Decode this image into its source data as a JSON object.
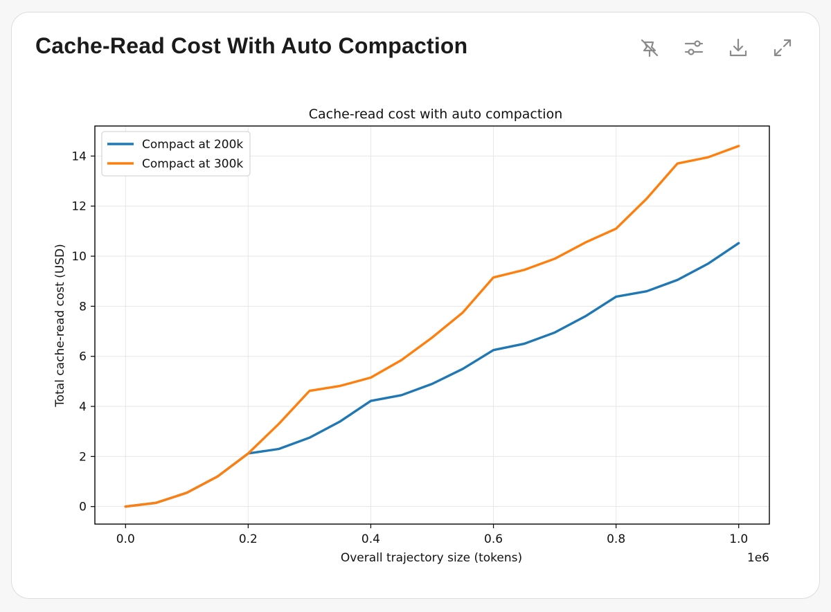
{
  "card": {
    "title": "Cache-Read Cost With Auto Compaction",
    "toolbar": [
      {
        "icon": "pin-off-icon",
        "label": ""
      },
      {
        "icon": "sliders-icon",
        "label": ""
      },
      {
        "icon": "download-icon",
        "label": ""
      },
      {
        "icon": "expand-icon",
        "label": ""
      }
    ]
  },
  "colors": {
    "series_200k": "#1f77b4",
    "series_300k": "#ff7f0e",
    "icon": "#8a8a8a",
    "grid": "#e6e6e6"
  },
  "chart_data": {
    "type": "line",
    "title": "Cache-read cost with auto compaction",
    "xlabel": "Overall trajectory size (tokens)",
    "ylabel": "Total cache-read cost (USD)",
    "x_offset_label": "1e6",
    "xlim": [
      -0.05,
      1.05
    ],
    "ylim": [
      -0.7,
      15.2
    ],
    "xticks": [
      0.0,
      0.2,
      0.4,
      0.6,
      0.8,
      1.0
    ],
    "xtick_labels": [
      "0.0",
      "0.2",
      "0.4",
      "0.6",
      "0.8",
      "1.0"
    ],
    "yticks": [
      0,
      2,
      4,
      6,
      8,
      10,
      12,
      14
    ],
    "ytick_labels": [
      "0",
      "2",
      "4",
      "6",
      "8",
      "10",
      "12",
      "14"
    ],
    "grid": true,
    "legend_position": "top-left",
    "series": [
      {
        "name": "Compact at 200k",
        "x": [
          0.0,
          0.05,
          0.1,
          0.15,
          0.2,
          0.25,
          0.3,
          0.35,
          0.4,
          0.45,
          0.5,
          0.55,
          0.6,
          0.65,
          0.7,
          0.75,
          0.8,
          0.85,
          0.9,
          0.95,
          1.0
        ],
        "y": [
          0.0,
          0.15,
          0.55,
          1.2,
          2.12,
          2.3,
          2.75,
          3.4,
          4.22,
          4.45,
          4.9,
          5.5,
          6.25,
          6.5,
          6.95,
          7.6,
          8.38,
          8.6,
          9.05,
          9.7,
          10.52
        ]
      },
      {
        "name": "Compact at 300k",
        "x": [
          0.0,
          0.05,
          0.1,
          0.15,
          0.2,
          0.25,
          0.3,
          0.35,
          0.4,
          0.45,
          0.5,
          0.55,
          0.6,
          0.65,
          0.7,
          0.75,
          0.8,
          0.85,
          0.9,
          0.95,
          1.0
        ],
        "y": [
          0.0,
          0.15,
          0.55,
          1.2,
          2.12,
          3.3,
          4.62,
          4.82,
          5.15,
          5.85,
          6.75,
          7.75,
          9.15,
          9.45,
          9.9,
          10.55,
          11.1,
          12.3,
          13.7,
          13.95,
          14.4
        ]
      }
    ]
  }
}
